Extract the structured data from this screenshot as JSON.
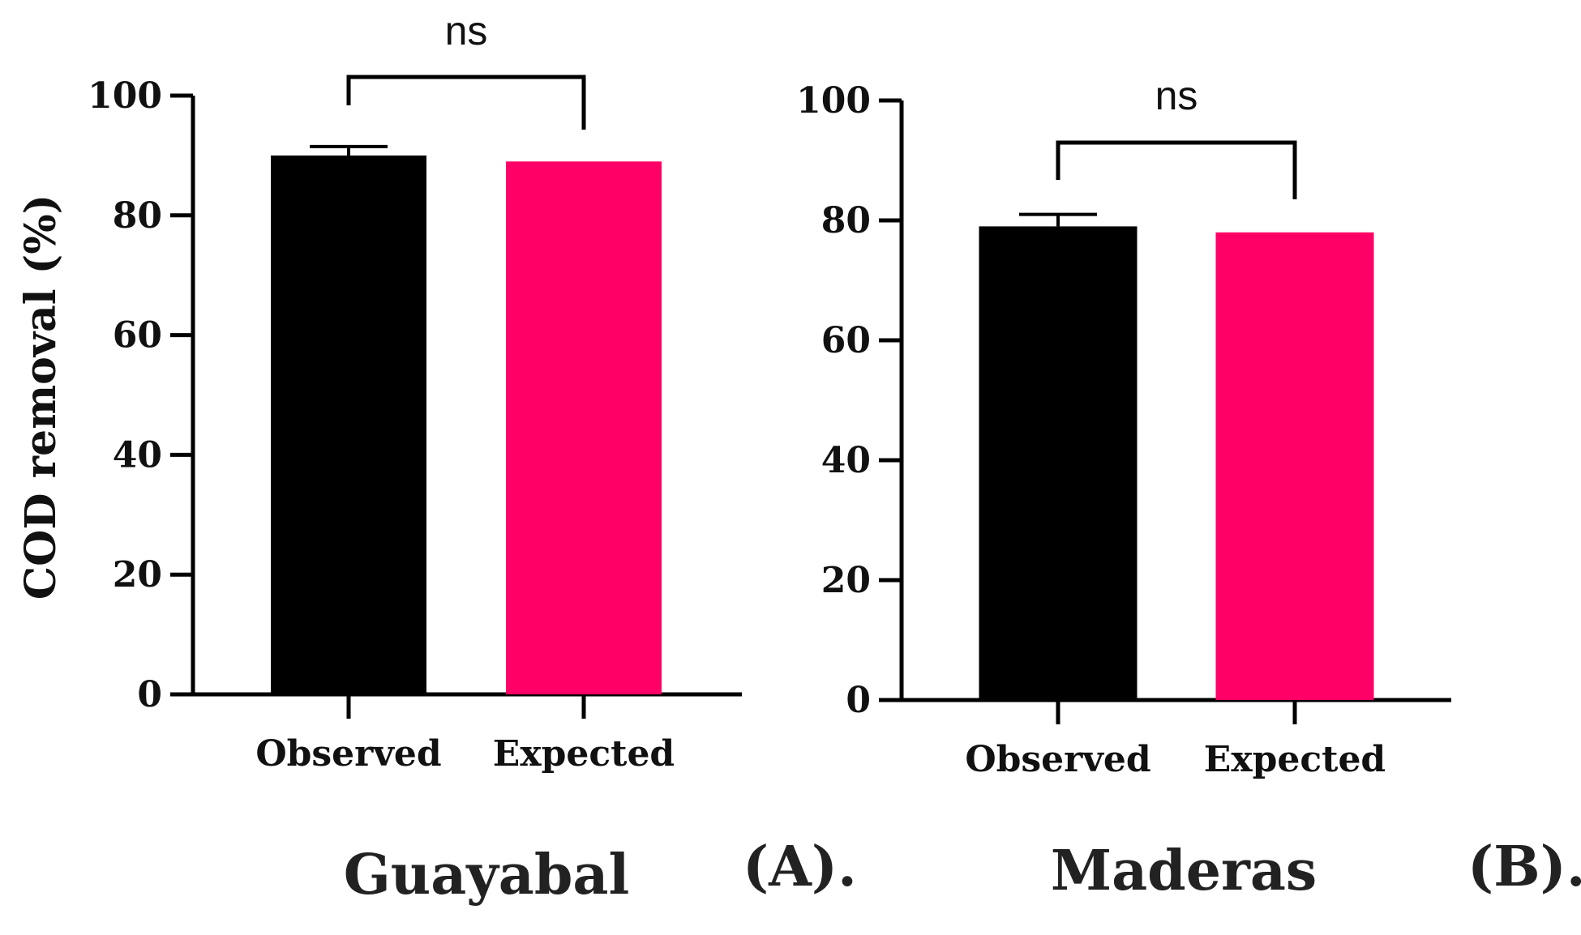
{
  "figure": {
    "ylabel": "COD removal (%)"
  },
  "chart_data": [
    {
      "type": "bar",
      "panel_label": "(A).",
      "title": "Guayabal",
      "categories": [
        "Observed",
        "Expected"
      ],
      "values": [
        90,
        89
      ],
      "errors": [
        1.5,
        0
      ],
      "colors": [
        "#000000",
        "#ff0066"
      ],
      "ylim": [
        0,
        100
      ],
      "yticks": [
        "0",
        "20",
        "40",
        "60",
        "80",
        "100"
      ],
      "ylabel": "COD removal (%)",
      "significance": "ns"
    },
    {
      "type": "bar",
      "panel_label": "(B).",
      "title": "Maderas",
      "categories": [
        "Observed",
        "Expected"
      ],
      "values": [
        79,
        78
      ],
      "errors": [
        2,
        0
      ],
      "colors": [
        "#000000",
        "#ff0066"
      ],
      "ylim": [
        0,
        100
      ],
      "yticks": [
        "0",
        "20",
        "40",
        "60",
        "80",
        "100"
      ],
      "ylabel": "",
      "significance": "ns"
    }
  ]
}
